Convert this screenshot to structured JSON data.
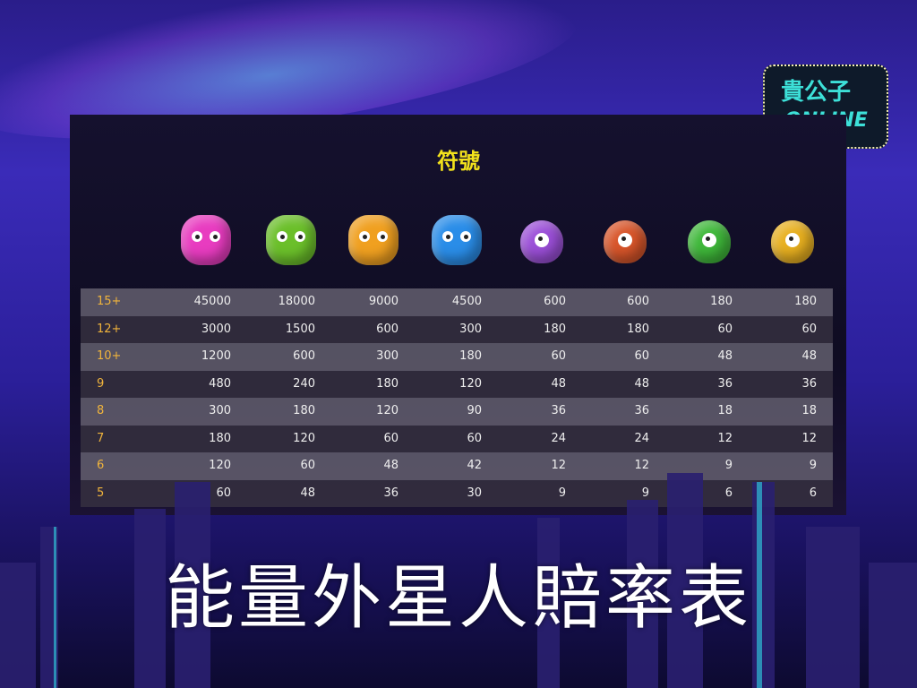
{
  "logo": {
    "text": "貴公子",
    "sub": "ONLINE"
  },
  "paytable": {
    "title": "符號",
    "symbols": [
      {
        "name": "pink-alien",
        "color": "#e83cc0"
      },
      {
        "name": "green-alien",
        "color": "#6bbf2a"
      },
      {
        "name": "orange-alien",
        "color": "#f0a020"
      },
      {
        "name": "blue-alien",
        "color": "#2a8de8"
      },
      {
        "name": "purple-one-eye",
        "color": "#9b4fd8"
      },
      {
        "name": "red-one-eye",
        "color": "#d8552a"
      },
      {
        "name": "green-one-eye",
        "color": "#3fb83a"
      },
      {
        "name": "yellow-one-eye",
        "color": "#e8b020"
      }
    ],
    "rows": [
      {
        "count": "15+",
        "values": [
          "45000",
          "18000",
          "9000",
          "4500",
          "600",
          "600",
          "180",
          "180"
        ]
      },
      {
        "count": "12+",
        "values": [
          "3000",
          "1500",
          "600",
          "300",
          "180",
          "180",
          "60",
          "60"
        ]
      },
      {
        "count": "10+",
        "values": [
          "1200",
          "600",
          "300",
          "180",
          "60",
          "60",
          "48",
          "48"
        ]
      },
      {
        "count": "9",
        "values": [
          "480",
          "240",
          "180",
          "120",
          "48",
          "48",
          "36",
          "36"
        ]
      },
      {
        "count": "8",
        "values": [
          "300",
          "180",
          "120",
          "90",
          "36",
          "36",
          "18",
          "18"
        ]
      },
      {
        "count": "7",
        "values": [
          "180",
          "120",
          "60",
          "60",
          "24",
          "24",
          "12",
          "12"
        ]
      },
      {
        "count": "6",
        "values": [
          "120",
          "60",
          "48",
          "42",
          "12",
          "12",
          "9",
          "9"
        ]
      },
      {
        "count": "5",
        "values": [
          "60",
          "48",
          "36",
          "30",
          "9",
          "9",
          "6",
          "6"
        ]
      }
    ]
  },
  "caption": "能量外星人賠率表"
}
